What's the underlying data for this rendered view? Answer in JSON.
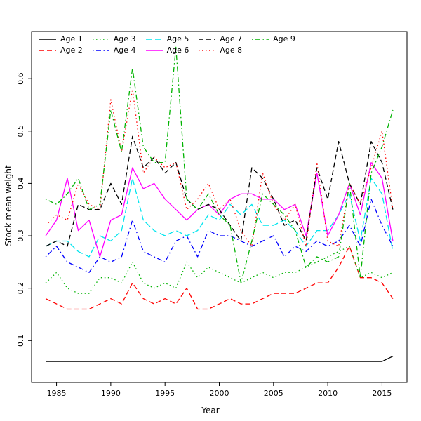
{
  "chart_data": {
    "type": "line",
    "title": "",
    "xlabel": "Year",
    "ylabel": "Stock mean weight",
    "grid": false,
    "legend_position": "top-left-inside",
    "xlim": [
      1982.7,
      2017.3
    ],
    "ylim": [
      0.02,
      0.69
    ],
    "x_ticks": [
      1985,
      1990,
      1995,
      2000,
      2005,
      2010,
      2015
    ],
    "y_ticks": [
      0.1,
      0.2,
      0.3,
      0.4,
      0.5,
      0.6
    ],
    "x": [
      1984,
      1985,
      1986,
      1987,
      1988,
      1989,
      1990,
      1991,
      1992,
      1993,
      1994,
      1995,
      1996,
      1997,
      1998,
      1999,
      2000,
      2001,
      2002,
      2003,
      2004,
      2005,
      2006,
      2007,
      2008,
      2009,
      2010,
      2011,
      2012,
      2013,
      2014,
      2015,
      2016
    ],
    "series": [
      {
        "name": "Age 1",
        "color": "#000000",
        "linestyle": "solid",
        "values": [
          0.06,
          0.06,
          0.06,
          0.06,
          0.06,
          0.06,
          0.06,
          0.06,
          0.06,
          0.06,
          0.06,
          0.06,
          0.06,
          0.06,
          0.06,
          0.06,
          0.06,
          0.06,
          0.06,
          0.06,
          0.06,
          0.06,
          0.06,
          0.06,
          0.06,
          0.06,
          0.06,
          0.06,
          0.06,
          0.06,
          0.06,
          0.06,
          0.07
        ]
      },
      {
        "name": "Age 2",
        "color": "#ff0000",
        "linestyle": "dashed",
        "values": [
          0.18,
          0.17,
          0.16,
          0.16,
          0.16,
          0.17,
          0.18,
          0.17,
          0.21,
          0.18,
          0.17,
          0.18,
          0.17,
          0.2,
          0.16,
          0.16,
          0.17,
          0.18,
          0.17,
          0.17,
          0.18,
          0.19,
          0.19,
          0.19,
          0.2,
          0.21,
          0.21,
          0.24,
          0.28,
          0.22,
          0.22,
          0.21,
          0.18
        ]
      },
      {
        "name": "Age 3",
        "color": "#00b300",
        "linestyle": "dotted",
        "values": [
          0.21,
          0.23,
          0.2,
          0.19,
          0.19,
          0.22,
          0.22,
          0.21,
          0.25,
          0.21,
          0.2,
          0.21,
          0.2,
          0.25,
          0.22,
          0.24,
          0.23,
          0.22,
          0.21,
          0.22,
          0.23,
          0.22,
          0.23,
          0.23,
          0.24,
          0.25,
          0.26,
          0.27,
          0.28,
          0.22,
          0.23,
          0.22,
          0.23
        ]
      },
      {
        "name": "Age 4",
        "color": "#0000ff",
        "linestyle": "dotdash",
        "values": [
          0.26,
          0.28,
          0.25,
          0.24,
          0.23,
          0.26,
          0.25,
          0.26,
          0.33,
          0.27,
          0.26,
          0.25,
          0.29,
          0.3,
          0.26,
          0.31,
          0.3,
          0.3,
          0.29,
          0.28,
          0.29,
          0.3,
          0.26,
          0.28,
          0.27,
          0.29,
          0.28,
          0.29,
          0.32,
          0.28,
          0.37,
          0.32,
          0.28
        ]
      },
      {
        "name": "Age 5",
        "color": "#00e5ee",
        "linestyle": "longdash",
        "values": [
          0.28,
          0.29,
          0.29,
          0.27,
          0.26,
          0.3,
          0.29,
          0.31,
          0.41,
          0.33,
          0.31,
          0.3,
          0.31,
          0.3,
          0.31,
          0.34,
          0.33,
          0.36,
          0.34,
          0.36,
          0.32,
          0.32,
          0.33,
          0.31,
          0.28,
          0.31,
          0.31,
          0.34,
          0.38,
          0.29,
          0.41,
          0.38,
          0.27
        ]
      },
      {
        "name": "Age 6",
        "color": "#ff00ff",
        "linestyle": "solid",
        "values": [
          0.3,
          0.33,
          0.41,
          0.31,
          0.33,
          0.26,
          0.33,
          0.34,
          0.43,
          0.39,
          0.4,
          0.37,
          0.35,
          0.33,
          0.35,
          0.36,
          0.34,
          0.37,
          0.38,
          0.38,
          0.37,
          0.37,
          0.35,
          0.36,
          0.3,
          0.42,
          0.3,
          0.34,
          0.4,
          0.34,
          0.44,
          0.41,
          0.29
        ]
      },
      {
        "name": "Age 7",
        "color": "#000000",
        "linestyle": "dashed",
        "values": [
          0.28,
          0.29,
          0.28,
          0.36,
          0.35,
          0.35,
          0.4,
          0.36,
          0.49,
          0.43,
          0.45,
          0.42,
          0.44,
          0.37,
          0.35,
          0.36,
          0.35,
          0.32,
          0.29,
          0.43,
          0.41,
          0.37,
          0.32,
          0.33,
          0.29,
          0.43,
          0.37,
          0.48,
          0.4,
          0.36,
          0.48,
          0.44,
          0.35
        ]
      },
      {
        "name": "Age 8",
        "color": "#ff0000",
        "linestyle": "dotted",
        "values": [
          0.32,
          0.34,
          0.33,
          0.4,
          0.36,
          0.35,
          0.56,
          0.46,
          0.58,
          0.42,
          0.45,
          0.43,
          0.44,
          0.35,
          0.37,
          0.4,
          0.35,
          0.37,
          0.31,
          0.28,
          0.42,
          0.36,
          0.33,
          0.36,
          0.28,
          0.44,
          0.29,
          0.28,
          0.4,
          0.36,
          0.43,
          0.5,
          0.35
        ]
      },
      {
        "name": "Age 9",
        "color": "#00b300",
        "linestyle": "dotdash",
        "values": [
          0.37,
          0.36,
          0.38,
          0.41,
          0.35,
          0.36,
          0.54,
          0.46,
          0.62,
          0.47,
          0.44,
          0.44,
          0.66,
          0.37,
          0.35,
          0.38,
          0.34,
          0.32,
          0.21,
          0.29,
          0.38,
          0.36,
          0.34,
          0.31,
          0.24,
          0.26,
          0.25,
          0.26,
          0.4,
          0.22,
          0.42,
          0.47,
          0.54
        ]
      }
    ]
  }
}
